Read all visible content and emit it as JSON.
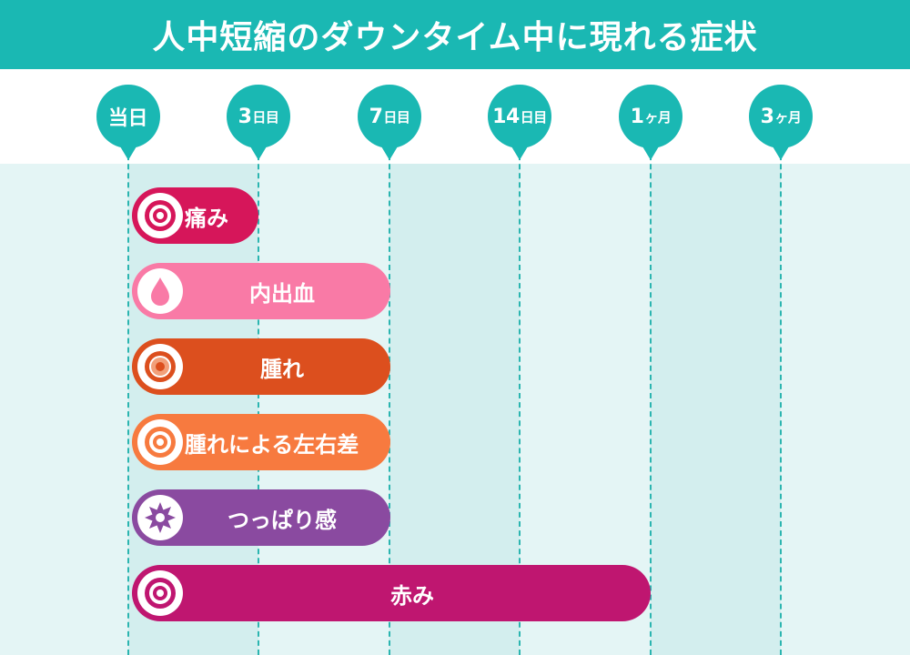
{
  "title": "人中短縮のダウンタイム中に現れる症状",
  "timeline": [
    {
      "num": "当日",
      "unit": ""
    },
    {
      "num": "3",
      "unit": "日目"
    },
    {
      "num": "7",
      "unit": "日目"
    },
    {
      "num": "14",
      "unit": "日目"
    },
    {
      "num": "1",
      "unit": "ヶ月"
    },
    {
      "num": "3",
      "unit": "ヶ月"
    }
  ],
  "symptoms": [
    {
      "label": "痛み",
      "start": "当日",
      "end": "3日目",
      "color": "#d6165a",
      "icon": "target-icon"
    },
    {
      "label": "内出血",
      "start": "当日",
      "end": "7日目",
      "color": "#f97aa6",
      "icon": "drop-icon"
    },
    {
      "label": "腫れ",
      "start": "当日",
      "end": "7日目",
      "color": "#dc4f1e",
      "icon": "swelling-icon"
    },
    {
      "label": "腫れによる左右差",
      "start": "当日",
      "end": "7日目",
      "color": "#f77a3f",
      "icon": "target-icon"
    },
    {
      "label": "つっぱり感",
      "start": "当日",
      "end": "7日目",
      "color": "#8a4aa0",
      "icon": "starburst-icon"
    },
    {
      "label": "赤み",
      "start": "当日",
      "end": "1ヶ月",
      "color": "#bf1670",
      "icon": "target-icon"
    }
  ]
}
